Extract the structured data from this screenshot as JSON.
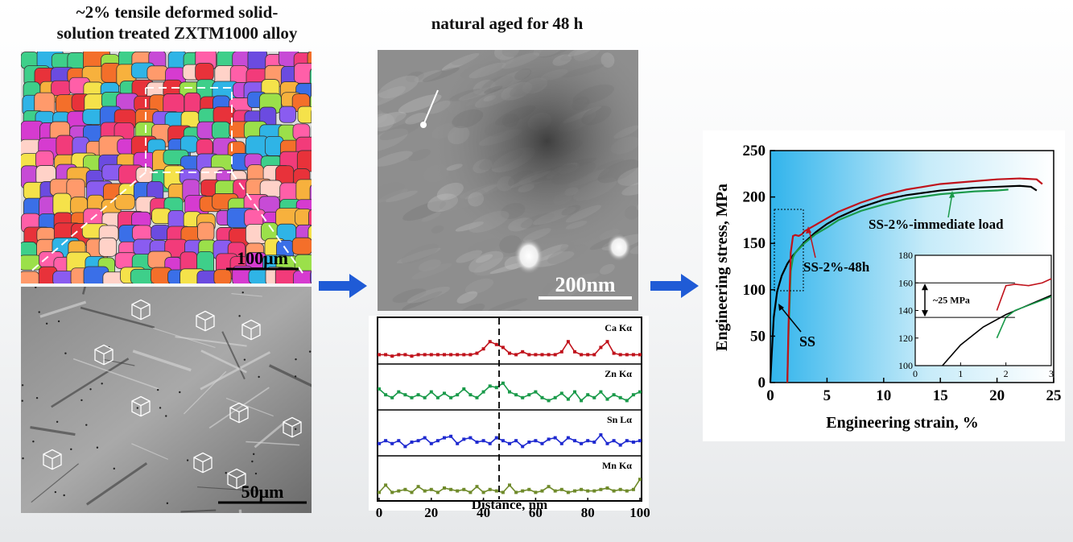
{
  "left": {
    "title_line1": "~2% tensile deformed solid-",
    "title_line2": "solution treated ZXTM1000 alloy",
    "ebsd_scale": "100μm",
    "sem_scale": "50μm"
  },
  "middle": {
    "title": "natural aged for 48 h",
    "tem_scale": "200nm",
    "eds": {
      "channels": [
        "Ca Kα",
        "Zn Kα",
        "Sn Lα",
        "Mn Kα"
      ],
      "colors": [
        "#c0121b",
        "#1a9a4a",
        "#1f2ad0",
        "#6f8a2a"
      ],
      "xlabel": "Distance, nm",
      "xticks": [
        "0",
        "20",
        "40",
        "60",
        "80",
        "100"
      ],
      "xlim": [
        0,
        100
      ],
      "marker_x": 46
    }
  },
  "chart_data": {
    "type": "line",
    "title": "",
    "xlabel": "Engineering strain, %",
    "ylabel": "Engineering stress, MPa",
    "xlim": [
      0,
      25
    ],
    "ylim": [
      0,
      250
    ],
    "xticks": [
      0,
      5,
      10,
      15,
      20,
      25
    ],
    "yticks": [
      0,
      50,
      100,
      150,
      200,
      250
    ],
    "series": [
      {
        "name": "SS",
        "color": "#000000",
        "x": [
          0,
          0.1,
          0.3,
          0.6,
          1.0,
          1.5,
          2.0,
          3.0,
          4.0,
          5.0,
          6.0,
          8.0,
          10.0,
          12.0,
          15.0,
          18.0,
          20.0,
          22.0,
          23.0,
          23.5
        ],
        "y": [
          0,
          25,
          70,
          98,
          115,
          128,
          137,
          151,
          162,
          171,
          178,
          189,
          197,
          202,
          207,
          210,
          211,
          212,
          211,
          207
        ]
      },
      {
        "name": "SS-2%-immediate load",
        "color": "#1a9a4a",
        "x": [
          1.5,
          1.6,
          1.8,
          2.0,
          2.2,
          3.0,
          4.0,
          5.0,
          6.0,
          8.0,
          10.0,
          12.0,
          15.0,
          18.0,
          20.0,
          21.0
        ],
        "y": [
          0,
          50,
          120,
          135,
          140,
          150,
          160,
          167,
          175,
          185,
          192,
          198,
          203,
          206,
          207,
          208
        ]
      },
      {
        "name": "SS-2%-48h",
        "color": "#c0121b",
        "x": [
          1.5,
          1.6,
          1.8,
          2.0,
          2.2,
          2.5,
          2.8,
          3.0,
          4.0,
          5.0,
          6.0,
          8.0,
          10.0,
          12.0,
          15.0,
          18.0,
          20.0,
          22.0,
          23.5,
          24.0
        ],
        "y": [
          0,
          60,
          140,
          158,
          159,
          158,
          160,
          163,
          170,
          177,
          184,
          194,
          202,
          208,
          214,
          217,
          219,
          220,
          219,
          214
        ]
      }
    ],
    "annotations": [
      "SS-2%-immediate load",
      "SS-2%-48h",
      "SS"
    ],
    "inset": {
      "xlim": [
        0,
        3
      ],
      "ylim": [
        100,
        180
      ],
      "xticks": [
        0,
        1,
        2,
        3
      ],
      "yticks": [
        100,
        120,
        140,
        160,
        180
      ],
      "annotation": "~25 MPa",
      "lines_y": [
        160,
        135
      ]
    }
  },
  "colors": {
    "arrow": "#1f5bd6",
    "chart_bg_start": "#31b4ec",
    "chart_bg_end": "#ffffff"
  }
}
